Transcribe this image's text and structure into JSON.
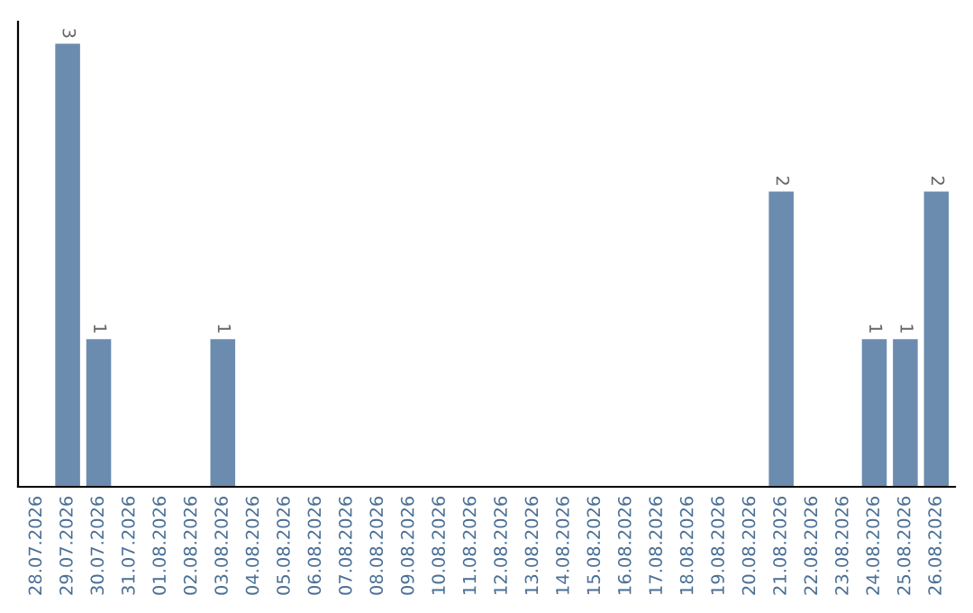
{
  "chart_data": {
    "type": "bar",
    "categories": [
      "28.07.2026",
      "29.07.2026",
      "30.07.2026",
      "31.07.2026",
      "01.08.2026",
      "02.08.2026",
      "03.08.2026",
      "04.08.2026",
      "05.08.2026",
      "06.08.2026",
      "07.08.2026",
      "08.08.2026",
      "09.08.2026",
      "10.08.2026",
      "11.08.2026",
      "12.08.2026",
      "13.08.2026",
      "14.08.2026",
      "15.08.2026",
      "16.08.2026",
      "17.08.2026",
      "18.08.2026",
      "19.08.2026",
      "20.08.2026",
      "21.08.2026",
      "22.08.2026",
      "23.08.2026",
      "24.08.2026",
      "25.08.2026",
      "26.08.2026"
    ],
    "values": [
      0,
      3,
      1,
      0,
      0,
      0,
      1,
      0,
      0,
      0,
      0,
      0,
      0,
      0,
      0,
      0,
      0,
      0,
      0,
      0,
      0,
      0,
      0,
      0,
      2,
      0,
      0,
      1,
      1,
      2
    ],
    "value_labels": [
      null,
      "3",
      "1",
      null,
      null,
      null,
      "1",
      null,
      null,
      null,
      null,
      null,
      null,
      null,
      null,
      null,
      null,
      null,
      null,
      null,
      null,
      null,
      null,
      null,
      "2",
      null,
      null,
      "1",
      "1",
      "2"
    ],
    "color": "#6b8cae",
    "grid": false,
    "tick_labels": "x"
  }
}
